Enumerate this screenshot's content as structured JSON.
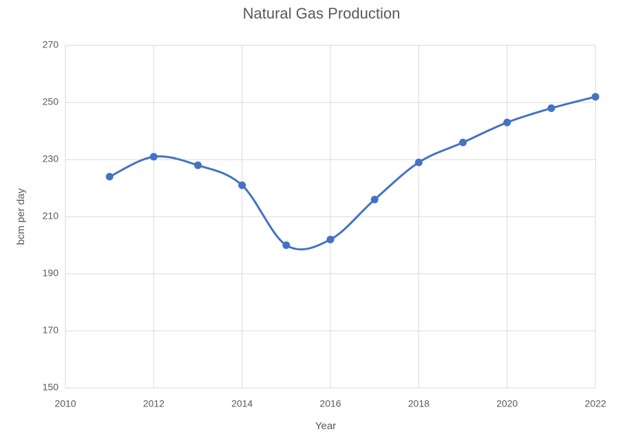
{
  "chart_data": {
    "type": "line",
    "title": "Natural Gas Production",
    "x_label": "Year",
    "y_label": "bcm per day",
    "x": [
      2011,
      2012,
      2013,
      2014,
      2015,
      2016,
      2017,
      2018,
      2019,
      2020,
      2021,
      2022
    ],
    "series": [
      {
        "name": "Natural Gas Production",
        "color": "#4472c4",
        "values": [
          224,
          231,
          228,
          221,
          200,
          202,
          216,
          229,
          236,
          243,
          248,
          252
        ]
      }
    ],
    "xlim": [
      2010,
      2022
    ],
    "xticks": [
      2010,
      2012,
      2014,
      2016,
      2018,
      2020,
      2022
    ],
    "ylim": [
      150,
      270
    ],
    "yticks": [
      150,
      170,
      190,
      210,
      230,
      250,
      270
    ],
    "grid": true,
    "smooth": true,
    "legend": false
  }
}
